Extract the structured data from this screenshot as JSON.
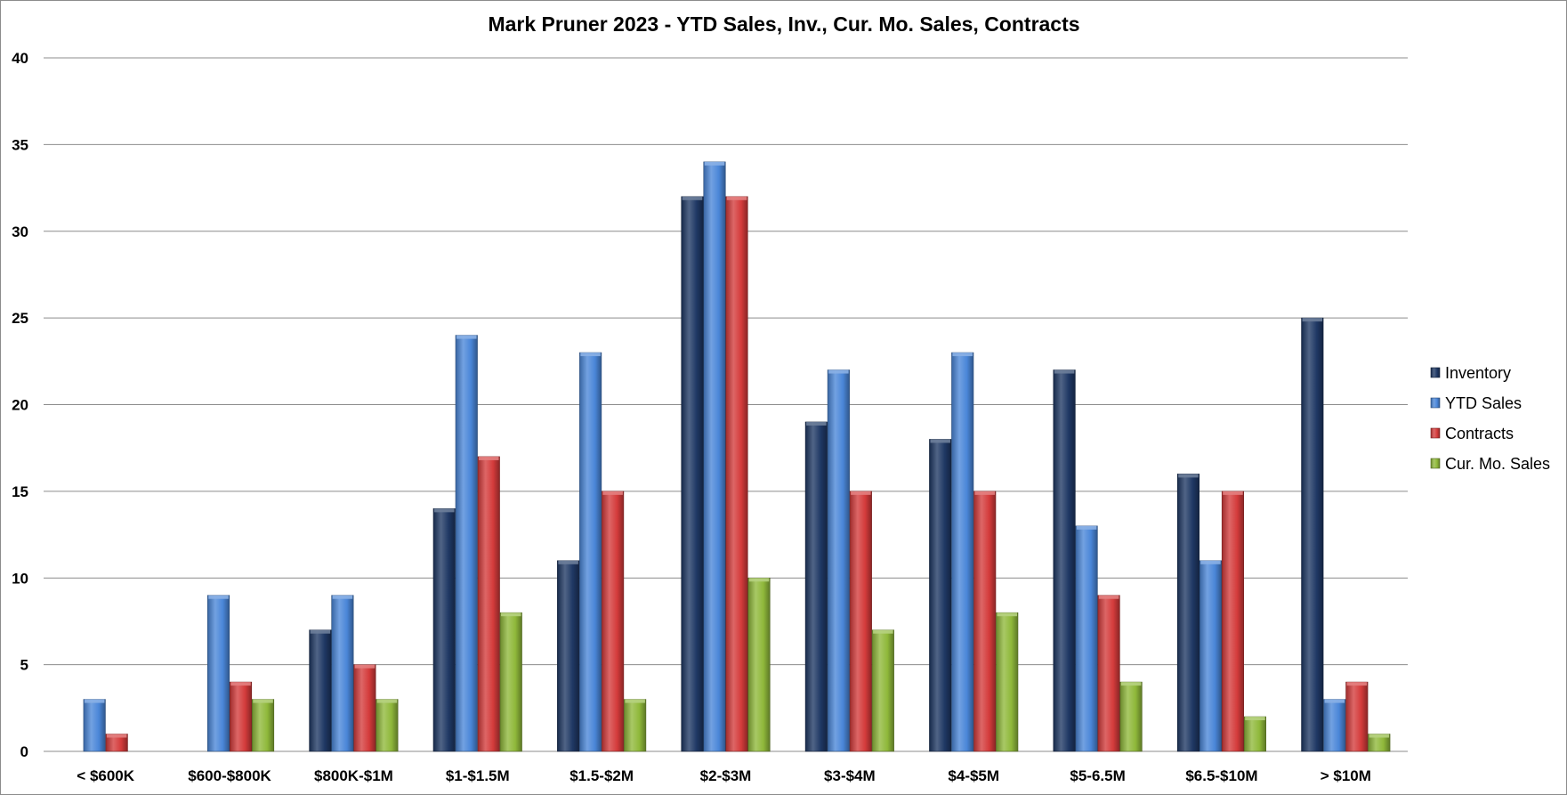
{
  "chart_data": {
    "type": "bar",
    "title": "Mark Pruner 2023 - YTD Sales, Inv., Cur. Mo. Sales, Contracts",
    "xlabel": "",
    "ylabel": "",
    "ylim": [
      0,
      40
    ],
    "yticks": [
      0,
      5,
      10,
      15,
      20,
      25,
      30,
      35,
      40
    ],
    "grid": true,
    "legend_position": "right",
    "categories": [
      "< $600K",
      "$600-$800K",
      "$800K-$1M",
      "$1-$1.5M",
      "$1.5-$2M",
      "$2-$3M",
      "$3-$4M",
      "$4-$5M",
      "$5-6.5M",
      "$6.5-$10M",
      "> $10M"
    ],
    "series": [
      {
        "name": "Inventory",
        "color": "#1f3864",
        "values": [
          0,
          0,
          7,
          14,
          11,
          32,
          19,
          18,
          22,
          16,
          25
        ]
      },
      {
        "name": "YTD Sales",
        "color": "#4a86d8",
        "values": [
          3,
          9,
          9,
          24,
          23,
          34,
          22,
          23,
          13,
          11,
          3
        ]
      },
      {
        "name": "Contracts",
        "color": "#d43b3b",
        "values": [
          1,
          4,
          5,
          17,
          15,
          32,
          15,
          15,
          9,
          15,
          4
        ]
      },
      {
        "name": "Cur. Mo. Sales",
        "color": "#8fb83a",
        "values": [
          0,
          3,
          3,
          8,
          3,
          10,
          7,
          8,
          4,
          2,
          1
        ]
      }
    ]
  }
}
